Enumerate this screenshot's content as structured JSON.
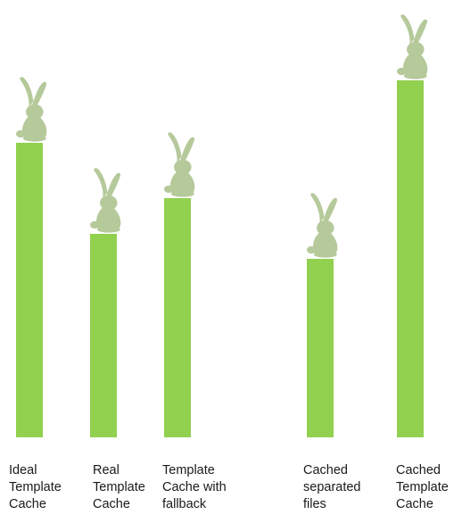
{
  "chart_data": {
    "type": "bar",
    "title": "",
    "xlabel": "",
    "ylabel": "",
    "axes_visible": false,
    "gridlines": false,
    "legend": "none",
    "categories": [
      "Ideal\nTemplate\nCache",
      "Real\nTemplate\nCache",
      "Template\nCache with\nfallback",
      "Cached\nseparated\nfiles",
      "Cached\nTemplate\nCache"
    ],
    "values": [
      330,
      228,
      268,
      200,
      400
    ],
    "ylim": [
      0,
      400
    ],
    "bar_color": "#92d050",
    "marker_icon": "rabbit-icon",
    "marker_color": "#b5c99a"
  }
}
